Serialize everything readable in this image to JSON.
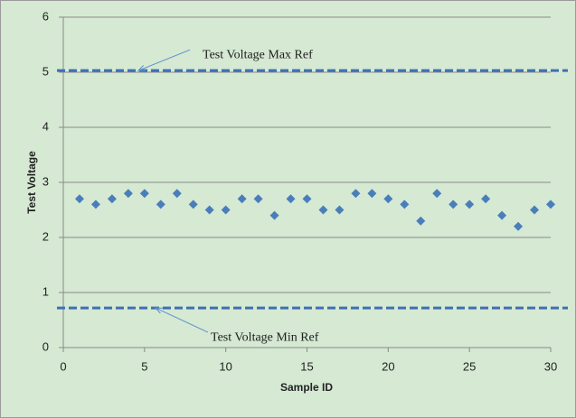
{
  "chart_data": {
    "type": "scatter",
    "x": [
      1,
      2,
      3,
      4,
      5,
      6,
      7,
      8,
      9,
      10,
      11,
      12,
      13,
      14,
      15,
      16,
      17,
      18,
      19,
      20,
      21,
      22,
      23,
      24,
      25,
      26,
      27,
      28,
      29,
      30
    ],
    "series": [
      {
        "color": "#4a7ebb",
        "values": [
          2.7,
          2.6,
          2.7,
          2.8,
          2.8,
          2.6,
          2.8,
          2.6,
          2.5,
          2.5,
          2.7,
          2.7,
          2.4,
          2.7,
          2.7,
          2.5,
          2.5,
          2.8,
          2.8,
          2.7,
          2.6,
          2.3,
          2.8,
          2.6,
          2.6,
          2.7,
          2.4,
          2.2,
          2.5,
          2.6
        ]
      }
    ],
    "xlim": [
      0,
      30
    ],
    "xticks": [
      0,
      5,
      10,
      15,
      20,
      25,
      30
    ],
    "ylim": [
      0,
      6
    ],
    "yticks": [
      0,
      1,
      2,
      3,
      4,
      5,
      6
    ],
    "grid": true,
    "x_label": "Sample ID",
    "y_label": "Test Voltage",
    "reference_lines": [
      {
        "label": "Test Voltage Max Ref",
        "value": 5.03,
        "color": "#3f6fb5"
      },
      {
        "label": "Test Voltage Min Ref",
        "value": 0.72,
        "color": "#3f6fb5"
      }
    ]
  }
}
